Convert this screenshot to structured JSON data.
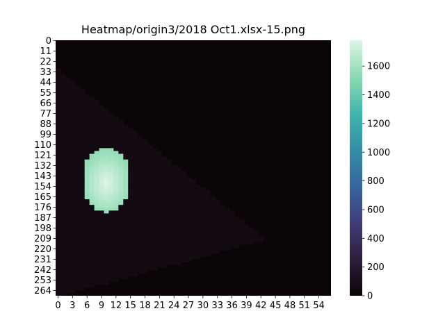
{
  "chart_data": {
    "type": "heatmap",
    "title": "Heatmap/origin3/2018 Oct1.xlsx-15.png",
    "xlabel": "",
    "ylabel": "",
    "x_tick_labels": [
      "0",
      "3",
      "6",
      "9",
      "12",
      "15",
      "18",
      "21",
      "24",
      "27",
      "30",
      "33",
      "36",
      "39",
      "42",
      "45",
      "48",
      "51",
      "54"
    ],
    "y_tick_labels": [
      "0",
      "11",
      "22",
      "33",
      "44",
      "55",
      "66",
      "77",
      "88",
      "99",
      "110",
      "121",
      "132",
      "143",
      "154",
      "165",
      "176",
      "187",
      "198",
      "209",
      "220",
      "231",
      "242",
      "253",
      "264"
    ],
    "n_cols": 57,
    "n_rows": 270,
    "colorbar": {
      "ticks": [
        0,
        200,
        400,
        600,
        800,
        1000,
        1200,
        1400,
        1600
      ],
      "range": [
        0,
        1780
      ],
      "colormap": "mako",
      "colors": [
        "#0b0405",
        "#2e1e3c",
        "#413d7b",
        "#37659e",
        "#348fa7",
        "#40b7ad",
        "#8bdab2",
        "#def5e5"
      ]
    },
    "features": {
      "background_value": 10,
      "triangle_region_value": 60,
      "triangle_vertices_col_row": [
        [
          0,
          30
        ],
        [
          43,
          210
        ],
        [
          0,
          270
        ]
      ],
      "hotspot": {
        "value_range": [
          1550,
          1780
        ],
        "peak_col": 10,
        "peak_row": 150,
        "col_range": [
          6,
          15
        ],
        "row_range": [
          113,
          182
        ]
      }
    }
  }
}
